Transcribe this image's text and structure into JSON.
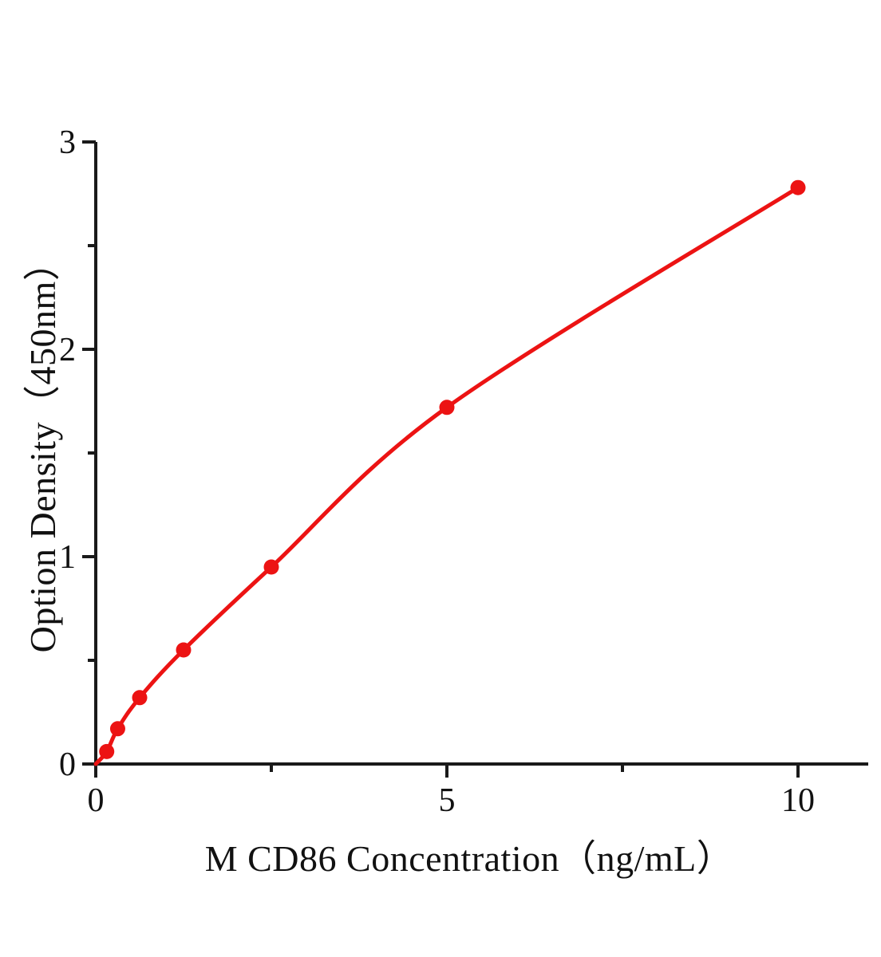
{
  "figure": {
    "background": "#ffffff"
  },
  "chart_data": {
    "type": "scatter",
    "title": "",
    "xlabel": "M CD86 Concentration（ng/mL）",
    "ylabel": "Option Density（450nm）",
    "series": [
      {
        "name": "standard-curve",
        "x": [
          0.156,
          0.312,
          0.625,
          1.25,
          2.5,
          5,
          10
        ],
        "y": [
          0.06,
          0.17,
          0.32,
          0.55,
          0.95,
          1.72,
          2.78
        ]
      }
    ],
    "curve_origin": [
      0,
      0
    ],
    "xlim": [
      0,
      11
    ],
    "ylim": [
      0,
      3
    ],
    "x_major_ticks": [
      0,
      5,
      10
    ],
    "x_tick_labels": [
      "0",
      "5",
      "10"
    ],
    "x_minor_ticks": [
      2.5,
      7.5
    ],
    "y_major_ticks": [
      0,
      1,
      2,
      3
    ],
    "y_tick_labels": [
      "0",
      "1",
      "2",
      "3"
    ],
    "y_minor_ticks": [
      0.5,
      1.5,
      2.5
    ],
    "grid": false,
    "legend_position": "none",
    "line_color": "#ec1313",
    "marker_color": "#ec1313",
    "axis_color": "#1a1a1a",
    "tick_label_color": "#111111"
  }
}
